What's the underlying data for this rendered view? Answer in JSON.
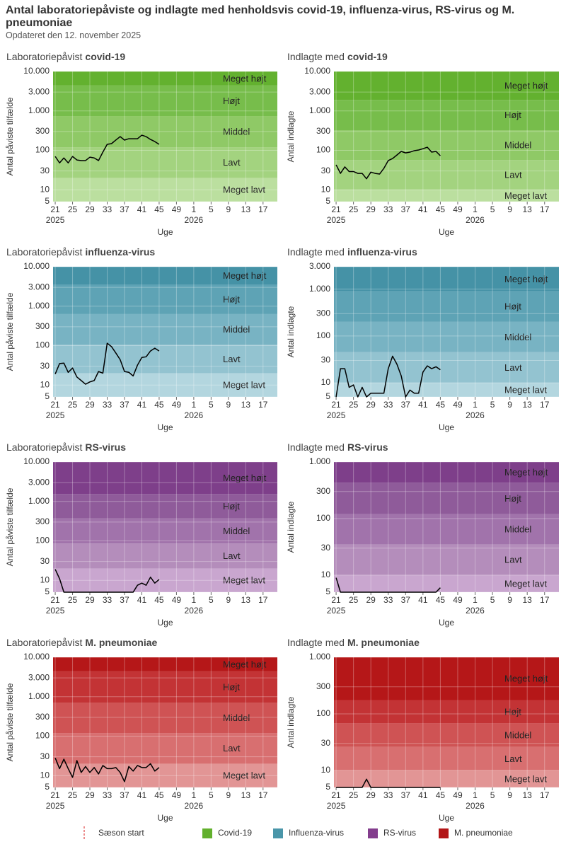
{
  "header": {
    "title": "Antal laboratoriepåviste og indlagte med henholdsvis covid-19, influenza-virus, RS-virus og M. pneumoniae",
    "subtitle": "Opdateret den 12. november 2025"
  },
  "chart_data": [
    {
      "type": "line",
      "title_prefix": "Laboratoriepåvist",
      "title_emphasis": "covid-19",
      "y_label": "Antal påviste tilfælde",
      "x_label": "Uge",
      "log_scale": true,
      "grid": true,
      "ylim": [
        5,
        10000
      ],
      "yticks": [
        5,
        10,
        30,
        100,
        300,
        {
          "value": 1000,
          "label": "1.000"
        },
        {
          "value": 3000,
          "label": "3.000"
        },
        {
          "value": 10000,
          "label": "10.000"
        }
      ],
      "xlim": [
        20.5,
        72.3
      ],
      "xticks": [
        21,
        25,
        29,
        33,
        37,
        41,
        45,
        49,
        {
          "value": 53,
          "label": "1"
        },
        {
          "value": 57,
          "label": "5"
        },
        {
          "value": 61,
          "label": "9"
        },
        {
          "value": 65,
          "label": "13"
        },
        {
          "value": 69,
          "label": "17"
        }
      ],
      "year_labels": [
        {
          "value": 21,
          "label": "2025"
        },
        {
          "value": 53,
          "label": "2026"
        }
      ],
      "bands": [
        "Meget lavt",
        "Lavt",
        "Middel",
        "Højt",
        "Meget højt"
      ],
      "band_limits": [
        20,
        120,
        740,
        4400
      ],
      "band_colors": [
        "#bbdf9f",
        "#a3d37f",
        "#8fc966",
        "#77bd4b",
        "#63b12f"
      ],
      "x": [
        21,
        22,
        23,
        24,
        25,
        26,
        27,
        28,
        29,
        30,
        31,
        32,
        33,
        34,
        35,
        36,
        37,
        38,
        39,
        40,
        41,
        42,
        43,
        44,
        45
      ],
      "values": [
        70,
        48,
        64,
        48,
        70,
        57,
        55,
        55,
        67,
        64,
        55,
        90,
        142,
        148,
        182,
        223,
        182,
        197,
        197,
        197,
        242,
        223,
        189,
        167,
        142
      ],
      "color": "#000000"
    },
    {
      "type": "line",
      "title_prefix": "Indlagte med",
      "title_emphasis": "covid-19",
      "y_label": "Antal indlagte",
      "x_label": "Uge",
      "log_scale": true,
      "grid": true,
      "ylim": [
        5,
        10000
      ],
      "yticks": [
        5,
        10,
        30,
        100,
        300,
        {
          "value": 1000,
          "label": "1.000"
        },
        {
          "value": 3000,
          "label": "3.000"
        },
        {
          "value": 10000,
          "label": "10.000"
        }
      ],
      "xlim": [
        20.5,
        72.3
      ],
      "xticks": [
        21,
        25,
        29,
        33,
        37,
        41,
        45,
        49,
        {
          "value": 53,
          "label": "1"
        },
        {
          "value": 57,
          "label": "5"
        },
        {
          "value": 61,
          "label": "9"
        },
        {
          "value": 65,
          "label": "13"
        },
        {
          "value": 69,
          "label": "17"
        }
      ],
      "year_labels": [
        {
          "value": 21,
          "label": "2025"
        },
        {
          "value": 53,
          "label": "2026"
        }
      ],
      "bands": [
        "Meget lavt",
        "Lavt",
        "Middel",
        "Højt",
        "Meget højt"
      ],
      "band_limits": [
        10,
        57,
        320,
        1900
      ],
      "band_colors": [
        "#bbdf9f",
        "#a3d37f",
        "#8fc966",
        "#77bd4b",
        "#63b12f"
      ],
      "x": [
        21,
        22,
        23,
        24,
        25,
        26,
        27,
        28,
        29,
        30,
        31,
        32,
        33,
        34,
        35,
        36,
        37,
        38,
        39,
        40,
        41,
        42,
        43,
        44,
        45
      ],
      "values": [
        43,
        26,
        38,
        29,
        29,
        26,
        26,
        19,
        28,
        26,
        25,
        35,
        55,
        62,
        76,
        94,
        86,
        90,
        98,
        102,
        110,
        120,
        90,
        94,
        73
      ],
      "color": "#000000"
    },
    {
      "type": "line",
      "title_prefix": "Laboratoriepåvist",
      "title_emphasis": "influenza-virus",
      "y_label": "Antal påviste tilfælde",
      "x_label": "Uge",
      "log_scale": true,
      "grid": true,
      "ylim": [
        5,
        10000
      ],
      "yticks": [
        5,
        10,
        30,
        100,
        300,
        {
          "value": 1000,
          "label": "1.000"
        },
        {
          "value": 3000,
          "label": "3.000"
        },
        {
          "value": 10000,
          "label": "10.000"
        }
      ],
      "xlim": [
        20.5,
        72.3
      ],
      "xticks": [
        21,
        25,
        29,
        33,
        37,
        41,
        45,
        49,
        {
          "value": 53,
          "label": "1"
        },
        {
          "value": 57,
          "label": "5"
        },
        {
          "value": 61,
          "label": "9"
        },
        {
          "value": 65,
          "label": "13"
        },
        {
          "value": 69,
          "label": "17"
        }
      ],
      "year_labels": [
        {
          "value": 21,
          "label": "2025"
        },
        {
          "value": 53,
          "label": "2026"
        }
      ],
      "bands": [
        "Meget lavt",
        "Lavt",
        "Middel",
        "Højt",
        "Meget højt"
      ],
      "band_limits": [
        20,
        105,
        630,
        3500
      ],
      "band_colors": [
        "#b3d6df",
        "#93c3d0",
        "#78b3c3",
        "#5ea3b5",
        "#4592a6"
      ],
      "x": [
        21,
        22,
        23,
        24,
        25,
        26,
        27,
        28,
        29,
        30,
        31,
        32,
        33,
        34,
        35,
        36,
        37,
        38,
        39,
        40,
        41,
        42,
        43,
        44,
        45
      ],
      "values": [
        19,
        35,
        36,
        21,
        27,
        16,
        13,
        10.5,
        12,
        13,
        22,
        20,
        115,
        94,
        65,
        44,
        22,
        21,
        17,
        32,
        50,
        52,
        73,
        86,
        73
      ],
      "color": "#000000"
    },
    {
      "type": "line",
      "title_prefix": "Indlagte med",
      "title_emphasis": "influenza-virus",
      "y_label": "Antal indlagte",
      "x_label": "Uge",
      "log_scale": true,
      "grid": true,
      "ylim": [
        5,
        3000
      ],
      "yticks": [
        5,
        10,
        30,
        100,
        300,
        {
          "value": 1000,
          "label": "1.000"
        },
        {
          "value": 3000,
          "label": "3.000"
        }
      ],
      "xlim": [
        20.5,
        72.3
      ],
      "xticks": [
        21,
        25,
        29,
        33,
        37,
        41,
        45,
        49,
        {
          "value": 53,
          "label": "1"
        },
        {
          "value": 57,
          "label": "5"
        },
        {
          "value": 61,
          "label": "9"
        },
        {
          "value": 65,
          "label": "13"
        },
        {
          "value": 69,
          "label": "17"
        }
      ],
      "year_labels": [
        {
          "value": 21,
          "label": "2025"
        },
        {
          "value": 53,
          "label": "2026"
        }
      ],
      "bands": [
        "Meget lavt",
        "Lavt",
        "Middel",
        "Højt",
        "Meget højt"
      ],
      "band_limits": [
        10,
        45,
        200,
        900
      ],
      "band_colors": [
        "#b3d6df",
        "#93c3d0",
        "#78b3c3",
        "#5ea3b5",
        "#4592a6"
      ],
      "x": [
        21,
        22,
        23,
        24,
        25,
        26,
        27,
        28,
        29,
        30,
        31,
        32,
        33,
        34,
        35,
        36,
        37,
        38,
        39,
        40,
        41,
        42,
        43,
        44,
        45
      ],
      "values": [
        5,
        20,
        20,
        8,
        9,
        5,
        8,
        5,
        6,
        6,
        6,
        6,
        20,
        37,
        25,
        14,
        5,
        7,
        6,
        6,
        17,
        23,
        20,
        22,
        19
      ],
      "color": "#000000"
    },
    {
      "type": "line",
      "title_prefix": "Laboratoriepåvist",
      "title_emphasis": "RS-virus",
      "y_label": "Antal påviste tilfælde",
      "x_label": "Uge",
      "log_scale": true,
      "grid": true,
      "ylim": [
        5,
        10000
      ],
      "yticks": [
        5,
        10,
        30,
        100,
        300,
        {
          "value": 1000,
          "label": "1.000"
        },
        {
          "value": 3000,
          "label": "3.000"
        },
        {
          "value": 10000,
          "label": "10.000"
        }
      ],
      "xlim": [
        20.5,
        72.3
      ],
      "xticks": [
        21,
        25,
        29,
        33,
        37,
        41,
        45,
        49,
        {
          "value": 53,
          "label": "1"
        },
        {
          "value": 57,
          "label": "5"
        },
        {
          "value": 61,
          "label": "9"
        },
        {
          "value": 65,
          "label": "13"
        },
        {
          "value": 69,
          "label": "17"
        }
      ],
      "year_labels": [
        {
          "value": 21,
          "label": "2025"
        },
        {
          "value": 53,
          "label": "2026"
        }
      ],
      "bands": [
        "Meget lavt",
        "Lavt",
        "Middel",
        "Højt",
        "Meget højt"
      ],
      "band_limits": [
        20,
        86,
        370,
        1550
      ],
      "band_colors": [
        "#c9a6cf",
        "#b48dbb",
        "#a173ab",
        "#8f5b9a",
        "#7e3f8a"
      ],
      "x": [
        21,
        22,
        23,
        24,
        25,
        26,
        27,
        28,
        29,
        30,
        31,
        32,
        33,
        34,
        35,
        36,
        37,
        38,
        39,
        40,
        41,
        42,
        43,
        44,
        45
      ],
      "values": [
        19,
        11,
        5,
        5,
        5,
        5,
        5,
        5,
        5,
        5,
        5,
        5,
        5,
        5,
        5,
        5,
        5,
        5,
        5,
        7.5,
        8.5,
        7.5,
        12,
        8.5,
        10.5
      ],
      "color": "#000000"
    },
    {
      "type": "line",
      "title_prefix": "Indlagte med",
      "title_emphasis": "RS-virus",
      "y_label": "Antal indlagte",
      "x_label": "Uge",
      "log_scale": true,
      "grid": true,
      "ylim": [
        5,
        1000
      ],
      "yticks": [
        5,
        10,
        30,
        100,
        300,
        {
          "value": 1000,
          "label": "1.000"
        }
      ],
      "xlim": [
        20.5,
        72.3
      ],
      "xticks": [
        21,
        25,
        29,
        33,
        37,
        41,
        45,
        49,
        {
          "value": 53,
          "label": "1"
        },
        {
          "value": 57,
          "label": "5"
        },
        {
          "value": 61,
          "label": "9"
        },
        {
          "value": 65,
          "label": "13"
        },
        {
          "value": 69,
          "label": "17"
        }
      ],
      "year_labels": [
        {
          "value": 21,
          "label": "2025"
        },
        {
          "value": 53,
          "label": "2026"
        }
      ],
      "bands": [
        "Meget lavt",
        "Lavt",
        "Middel",
        "Højt",
        "Meget højt"
      ],
      "band_limits": [
        10,
        35,
        120,
        430
      ],
      "band_colors": [
        "#c9a6cf",
        "#b48dbb",
        "#a173ab",
        "#8f5b9a",
        "#7e3f8a"
      ],
      "x": [
        21,
        22,
        23,
        24,
        25,
        26,
        27,
        28,
        29,
        30,
        31,
        32,
        33,
        34,
        35,
        36,
        37,
        38,
        39,
        40,
        41,
        42,
        43,
        44,
        45
      ],
      "values": [
        9,
        5,
        5,
        5,
        5,
        5,
        5,
        5,
        5,
        5,
        5,
        5,
        5,
        5,
        5,
        5,
        5,
        5,
        5,
        5,
        5,
        5,
        5,
        5,
        6
      ],
      "color": "#000000"
    },
    {
      "type": "line",
      "title_prefix": "Laboratoriepåvist",
      "title_emphasis": "M. pneumoniae",
      "y_label": "Antal påviste tilfælde",
      "x_label": "Uge",
      "log_scale": true,
      "grid": true,
      "ylim": [
        5,
        10000
      ],
      "yticks": [
        5,
        10,
        30,
        100,
        300,
        {
          "value": 1000,
          "label": "1.000"
        },
        {
          "value": 3000,
          "label": "3.000"
        },
        {
          "value": 10000,
          "label": "10.000"
        }
      ],
      "xlim": [
        20.5,
        72.3
      ],
      "xticks": [
        21,
        25,
        29,
        33,
        37,
        41,
        45,
        49,
        {
          "value": 53,
          "label": "1"
        },
        {
          "value": 57,
          "label": "5"
        },
        {
          "value": 61,
          "label": "9"
        },
        {
          "value": 65,
          "label": "13"
        },
        {
          "value": 69,
          "label": "17"
        }
      ],
      "year_labels": [
        {
          "value": 21,
          "label": "2025"
        },
        {
          "value": 53,
          "label": "2026"
        }
      ],
      "bands": [
        "Meget lavt",
        "Lavt",
        "Middel",
        "Højt",
        "Meget højt"
      ],
      "band_limits": [
        20,
        120,
        700,
        4400
      ],
      "band_colors": [
        "#e29595",
        "#d86f70",
        "#cf5354",
        "#c33335",
        "#b51718"
      ],
      "x": [
        21,
        22,
        23,
        24,
        25,
        26,
        27,
        28,
        29,
        30,
        31,
        32,
        33,
        34,
        35,
        36,
        37,
        38,
        39,
        40,
        41,
        42,
        43,
        44,
        45
      ],
      "values": [
        28,
        15,
        26,
        15,
        9,
        24,
        12,
        17,
        12,
        16,
        11,
        18,
        15,
        15,
        16,
        12,
        7,
        17,
        13,
        18,
        16,
        16,
        20,
        13,
        16
      ],
      "color": "#000000"
    },
    {
      "type": "line",
      "title_prefix": "Indlagte med",
      "title_emphasis": "M. pneumoniae",
      "y_label": "Antal indlagte",
      "x_label": "Uge",
      "log_scale": true,
      "grid": true,
      "ylim": [
        5,
        1000
      ],
      "yticks": [
        5,
        10,
        30,
        100,
        300,
        {
          "value": 1000,
          "label": "1.000"
        }
      ],
      "xlim": [
        20.5,
        72.3
      ],
      "xticks": [
        21,
        25,
        29,
        33,
        37,
        41,
        45,
        49,
        {
          "value": 53,
          "label": "1"
        },
        {
          "value": 57,
          "label": "5"
        },
        {
          "value": 61,
          "label": "9"
        },
        {
          "value": 65,
          "label": "13"
        },
        {
          "value": 69,
          "label": "17"
        }
      ],
      "year_labels": [
        {
          "value": 21,
          "label": "2025"
        },
        {
          "value": 53,
          "label": "2026"
        }
      ],
      "bands": [
        "Meget lavt",
        "Lavt",
        "Middel",
        "Højt",
        "Meget højt"
      ],
      "band_limits": [
        10,
        26,
        68,
        175
      ],
      "band_colors": [
        "#e29595",
        "#d86f70",
        "#cf5354",
        "#c33335",
        "#b51718"
      ],
      "x": [
        21,
        22,
        23,
        24,
        25,
        26,
        27,
        28,
        29,
        30,
        31,
        32,
        33,
        34,
        35,
        36,
        37,
        38,
        39,
        40,
        41,
        42,
        43,
        44,
        45
      ],
      "values": [
        5,
        5,
        5,
        5,
        5,
        5,
        5,
        7,
        5,
        5,
        5,
        5,
        5,
        5,
        5,
        5,
        5,
        5,
        5,
        5,
        5,
        5,
        5,
        5,
        5
      ],
      "color": "#000000"
    }
  ],
  "legend": [
    {
      "label": "Sæson start",
      "color": "#e04040",
      "marker": "dashed-line"
    },
    {
      "label": "Covid-19",
      "color": "#62b02d",
      "marker": "square"
    },
    {
      "label": "Influenza-virus",
      "color": "#4a96a9",
      "marker": "square"
    },
    {
      "label": "RS-virus",
      "color": "#833d8d",
      "marker": "square"
    },
    {
      "label": "M. pneumoniae",
      "color": "#b31517",
      "marker": "square"
    }
  ]
}
